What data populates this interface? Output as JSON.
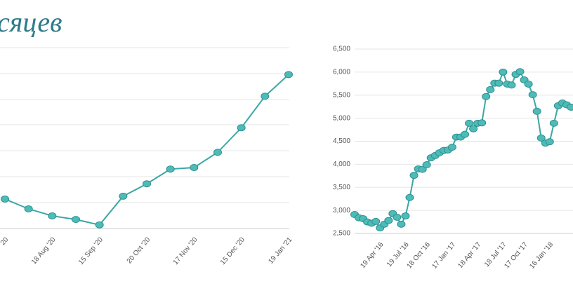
{
  "page_title": "сяцев",
  "chart_data": [
    {
      "type": "line",
      "color": "#3ba7a5",
      "categories": [
        "20",
        null,
        "18 Aug '20",
        null,
        "15 Sep '20",
        null,
        "20 Oct '20",
        null,
        "17 Nov '20",
        null,
        "15 Dec '20",
        null,
        "19 Jan '21"
      ],
      "values": [
        1.14,
        0.76,
        0.49,
        0.35,
        0.14,
        1.25,
        1.73,
        2.3,
        2.36,
        2.95,
        3.9,
        5.12,
        5.96
      ],
      "ylim": [
        0,
        7
      ]
    },
    {
      "type": "line",
      "color": "#3ba7a5",
      "categories": [
        null,
        null,
        null,
        null,
        null,
        null,
        "19 Apr '16",
        null,
        null,
        null,
        null,
        null,
        "19 Jul '16",
        null,
        null,
        null,
        null,
        "18 Oct '16",
        null,
        null,
        null,
        null,
        null,
        "17 Jan '17",
        null,
        null,
        null,
        null,
        null,
        "18 Apr '17",
        null,
        null,
        null,
        null,
        null,
        "18 Jul '17",
        null,
        null,
        null,
        null,
        "17 Oct '17",
        null,
        null,
        null,
        null,
        null,
        "16 Jan '18",
        null,
        null,
        null,
        null,
        null
      ],
      "values": [
        2910,
        2840,
        2820,
        2750,
        2720,
        2760,
        2620,
        2700,
        2780,
        2930,
        2850,
        2700,
        2880,
        3280,
        3760,
        3900,
        3890,
        3990,
        4140,
        4190,
        4250,
        4300,
        4310,
        4370,
        4590,
        4590,
        4650,
        4890,
        4770,
        4890,
        4900,
        5470,
        5620,
        5760,
        5760,
        6000,
        5740,
        5720,
        5950,
        6010,
        5830,
        5740,
        5510,
        5150,
        4570,
        4460,
        4490,
        4890,
        5270,
        5330,
        5290,
        5240
      ],
      "ylim": [
        2500,
        6500
      ],
      "yticks": [
        {
          "value": 2500,
          "label": "2,500"
        },
        {
          "value": 3000,
          "label": "3,000"
        },
        {
          "value": 3500,
          "label": "3,500"
        },
        {
          "value": 4000,
          "label": "4,000"
        },
        {
          "value": 4500,
          "label": "4,500"
        },
        {
          "value": 5000,
          "label": "5,000"
        },
        {
          "value": 5500,
          "label": "5,500"
        },
        {
          "value": 6000,
          "label": "6,000"
        },
        {
          "value": 6500,
          "label": "6,500"
        }
      ],
      "grid": true
    }
  ]
}
